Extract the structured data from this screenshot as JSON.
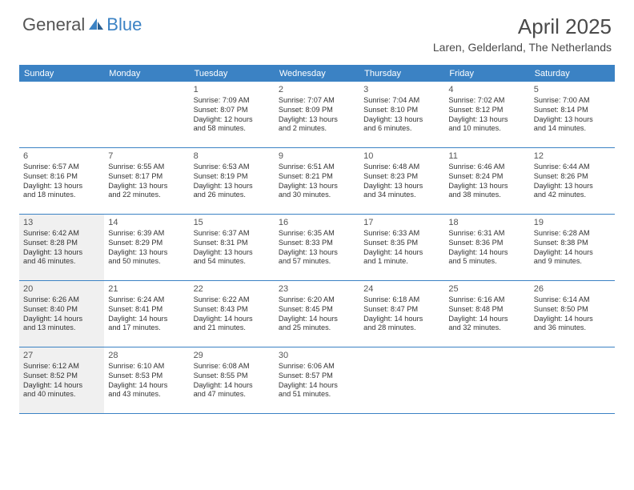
{
  "brand": {
    "part1": "General",
    "part2": "Blue"
  },
  "title": "April 2025",
  "location": "Laren, Gelderland, The Netherlands",
  "colors": {
    "header_bg": "#3b82c4",
    "shaded_bg": "#f0f0f0",
    "text": "#333333",
    "title_text": "#4a4a4a"
  },
  "day_names": [
    "Sunday",
    "Monday",
    "Tuesday",
    "Wednesday",
    "Thursday",
    "Friday",
    "Saturday"
  ],
  "weeks": [
    [
      {
        "empty": true
      },
      {
        "empty": true
      },
      {
        "n": "1",
        "sr": "Sunrise: 7:09 AM",
        "ss": "Sunset: 8:07 PM",
        "dl1": "Daylight: 12 hours",
        "dl2": "and 58 minutes."
      },
      {
        "n": "2",
        "sr": "Sunrise: 7:07 AM",
        "ss": "Sunset: 8:09 PM",
        "dl1": "Daylight: 13 hours",
        "dl2": "and 2 minutes."
      },
      {
        "n": "3",
        "sr": "Sunrise: 7:04 AM",
        "ss": "Sunset: 8:10 PM",
        "dl1": "Daylight: 13 hours",
        "dl2": "and 6 minutes."
      },
      {
        "n": "4",
        "sr": "Sunrise: 7:02 AM",
        "ss": "Sunset: 8:12 PM",
        "dl1": "Daylight: 13 hours",
        "dl2": "and 10 minutes."
      },
      {
        "n": "5",
        "sr": "Sunrise: 7:00 AM",
        "ss": "Sunset: 8:14 PM",
        "dl1": "Daylight: 13 hours",
        "dl2": "and 14 minutes."
      }
    ],
    [
      {
        "n": "6",
        "sr": "Sunrise: 6:57 AM",
        "ss": "Sunset: 8:16 PM",
        "dl1": "Daylight: 13 hours",
        "dl2": "and 18 minutes."
      },
      {
        "n": "7",
        "sr": "Sunrise: 6:55 AM",
        "ss": "Sunset: 8:17 PM",
        "dl1": "Daylight: 13 hours",
        "dl2": "and 22 minutes."
      },
      {
        "n": "8",
        "sr": "Sunrise: 6:53 AM",
        "ss": "Sunset: 8:19 PM",
        "dl1": "Daylight: 13 hours",
        "dl2": "and 26 minutes."
      },
      {
        "n": "9",
        "sr": "Sunrise: 6:51 AM",
        "ss": "Sunset: 8:21 PM",
        "dl1": "Daylight: 13 hours",
        "dl2": "and 30 minutes."
      },
      {
        "n": "10",
        "sr": "Sunrise: 6:48 AM",
        "ss": "Sunset: 8:23 PM",
        "dl1": "Daylight: 13 hours",
        "dl2": "and 34 minutes."
      },
      {
        "n": "11",
        "sr": "Sunrise: 6:46 AM",
        "ss": "Sunset: 8:24 PM",
        "dl1": "Daylight: 13 hours",
        "dl2": "and 38 minutes."
      },
      {
        "n": "12",
        "sr": "Sunrise: 6:44 AM",
        "ss": "Sunset: 8:26 PM",
        "dl1": "Daylight: 13 hours",
        "dl2": "and 42 minutes."
      }
    ],
    [
      {
        "n": "13",
        "shaded": true,
        "sr": "Sunrise: 6:42 AM",
        "ss": "Sunset: 8:28 PM",
        "dl1": "Daylight: 13 hours",
        "dl2": "and 46 minutes."
      },
      {
        "n": "14",
        "sr": "Sunrise: 6:39 AM",
        "ss": "Sunset: 8:29 PM",
        "dl1": "Daylight: 13 hours",
        "dl2": "and 50 minutes."
      },
      {
        "n": "15",
        "sr": "Sunrise: 6:37 AM",
        "ss": "Sunset: 8:31 PM",
        "dl1": "Daylight: 13 hours",
        "dl2": "and 54 minutes."
      },
      {
        "n": "16",
        "sr": "Sunrise: 6:35 AM",
        "ss": "Sunset: 8:33 PM",
        "dl1": "Daylight: 13 hours",
        "dl2": "and 57 minutes."
      },
      {
        "n": "17",
        "sr": "Sunrise: 6:33 AM",
        "ss": "Sunset: 8:35 PM",
        "dl1": "Daylight: 14 hours",
        "dl2": "and 1 minute."
      },
      {
        "n": "18",
        "sr": "Sunrise: 6:31 AM",
        "ss": "Sunset: 8:36 PM",
        "dl1": "Daylight: 14 hours",
        "dl2": "and 5 minutes."
      },
      {
        "n": "19",
        "sr": "Sunrise: 6:28 AM",
        "ss": "Sunset: 8:38 PM",
        "dl1": "Daylight: 14 hours",
        "dl2": "and 9 minutes."
      }
    ],
    [
      {
        "n": "20",
        "shaded": true,
        "sr": "Sunrise: 6:26 AM",
        "ss": "Sunset: 8:40 PM",
        "dl1": "Daylight: 14 hours",
        "dl2": "and 13 minutes."
      },
      {
        "n": "21",
        "sr": "Sunrise: 6:24 AM",
        "ss": "Sunset: 8:41 PM",
        "dl1": "Daylight: 14 hours",
        "dl2": "and 17 minutes."
      },
      {
        "n": "22",
        "sr": "Sunrise: 6:22 AM",
        "ss": "Sunset: 8:43 PM",
        "dl1": "Daylight: 14 hours",
        "dl2": "and 21 minutes."
      },
      {
        "n": "23",
        "sr": "Sunrise: 6:20 AM",
        "ss": "Sunset: 8:45 PM",
        "dl1": "Daylight: 14 hours",
        "dl2": "and 25 minutes."
      },
      {
        "n": "24",
        "sr": "Sunrise: 6:18 AM",
        "ss": "Sunset: 8:47 PM",
        "dl1": "Daylight: 14 hours",
        "dl2": "and 28 minutes."
      },
      {
        "n": "25",
        "sr": "Sunrise: 6:16 AM",
        "ss": "Sunset: 8:48 PM",
        "dl1": "Daylight: 14 hours",
        "dl2": "and 32 minutes."
      },
      {
        "n": "26",
        "sr": "Sunrise: 6:14 AM",
        "ss": "Sunset: 8:50 PM",
        "dl1": "Daylight: 14 hours",
        "dl2": "and 36 minutes."
      }
    ],
    [
      {
        "n": "27",
        "shaded": true,
        "sr": "Sunrise: 6:12 AM",
        "ss": "Sunset: 8:52 PM",
        "dl1": "Daylight: 14 hours",
        "dl2": "and 40 minutes."
      },
      {
        "n": "28",
        "sr": "Sunrise: 6:10 AM",
        "ss": "Sunset: 8:53 PM",
        "dl1": "Daylight: 14 hours",
        "dl2": "and 43 minutes."
      },
      {
        "n": "29",
        "sr": "Sunrise: 6:08 AM",
        "ss": "Sunset: 8:55 PM",
        "dl1": "Daylight: 14 hours",
        "dl2": "and 47 minutes."
      },
      {
        "n": "30",
        "sr": "Sunrise: 6:06 AM",
        "ss": "Sunset: 8:57 PM",
        "dl1": "Daylight: 14 hours",
        "dl2": "and 51 minutes."
      },
      {
        "empty": true
      },
      {
        "empty": true
      },
      {
        "empty": true
      }
    ]
  ]
}
